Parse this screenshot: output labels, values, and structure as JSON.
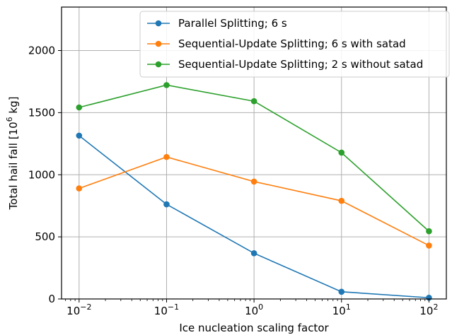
{
  "chart_data": {
    "type": "line",
    "xscale": "log",
    "x": [
      0.01,
      0.1,
      1,
      10,
      100
    ],
    "x_tick_labels": [
      {
        "base": "10",
        "exp": "−2"
      },
      {
        "base": "10",
        "exp": "−1"
      },
      {
        "base": "10",
        "exp": "0"
      },
      {
        "base": "10",
        "exp": "1"
      },
      {
        "base": "10",
        "exp": "2"
      }
    ],
    "y_ticks": [
      0,
      500,
      1000,
      1500,
      2000
    ],
    "y_tick_labels": [
      "0",
      "500",
      "1000",
      "1500",
      "2000"
    ],
    "xlim": [
      0.0063,
      158
    ],
    "ylim": [
      0,
      2350
    ],
    "xlabel": "Ice nucleation scaling factor",
    "ylabel": {
      "prefix": "Total hail fall [10",
      "sup": "6",
      "suffix": " kg]"
    },
    "grid": true,
    "legend_position": "top-right",
    "series": [
      {
        "name": "Parallel Splitting; 6 s",
        "color": "#1f77b4",
        "values": [
          1315,
          762,
          368,
          58,
          10
        ]
      },
      {
        "name": "Sequential-Update Splitting; 6 s with satad",
        "color": "#ff7f0e",
        "values": [
          890,
          1143,
          945,
          790,
          430
        ]
      },
      {
        "name": "Sequential-Update Splitting; 2 s without satad",
        "color": "#2ca02c",
        "values": [
          1542,
          1722,
          1592,
          1178,
          545
        ]
      }
    ]
  }
}
